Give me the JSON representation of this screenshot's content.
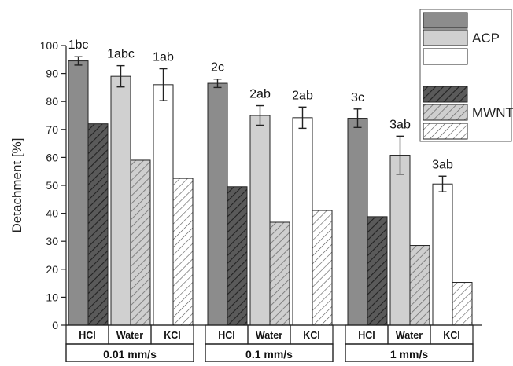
{
  "chart_data": {
    "type": "bar",
    "ylabel": "Detachment [%]",
    "xlabel": "",
    "ylim": [
      0,
      100
    ],
    "yticks": [
      0,
      10,
      20,
      30,
      40,
      50,
      60,
      70,
      80,
      90,
      100
    ],
    "grid": false,
    "groups": [
      "0.01 mm/s",
      "0.1 mm/s",
      "1 mm/s"
    ],
    "categories": [
      "HCl",
      "Water",
      "KCl"
    ],
    "legend": {
      "placement": "top-right",
      "entries": [
        {
          "label": "",
          "fill": "#8c8c8c",
          "pattern": "solid"
        },
        {
          "label": "ACP",
          "fill": "#d0d0d0",
          "pattern": "solid"
        },
        {
          "label": "",
          "fill": "#ffffff",
          "pattern": "solid"
        },
        {
          "label": "",
          "fill": "#5a5a5a",
          "pattern": "hatch"
        },
        {
          "label": "MWNT",
          "fill": "#b8b8b8",
          "pattern": "hatch"
        },
        {
          "label": "",
          "fill": "#ffffff",
          "pattern": "hatch"
        }
      ]
    },
    "series": [
      {
        "material": "ACP",
        "bars": [
          {
            "group": "0.01 mm/s",
            "category": "HCl",
            "value": 94.5,
            "err": 1.5,
            "label": "1bc",
            "fill": "#8c8c8c"
          },
          {
            "group": "0.01 mm/s",
            "category": "Water",
            "value": 89.0,
            "err": 3.8,
            "label": "1abc",
            "fill": "#d0d0d0"
          },
          {
            "group": "0.01 mm/s",
            "category": "KCl",
            "value": 86.0,
            "err": 5.7,
            "label": "1ab",
            "fill": "#ffffff"
          },
          {
            "group": "0.1 mm/s",
            "category": "HCl",
            "value": 86.5,
            "err": 1.5,
            "label": "2c",
            "fill": "#8c8c8c"
          },
          {
            "group": "0.1 mm/s",
            "category": "Water",
            "value": 75.0,
            "err": 3.5,
            "label": "2ab",
            "fill": "#d0d0d0"
          },
          {
            "group": "0.1 mm/s",
            "category": "KCl",
            "value": 74.2,
            "err": 3.8,
            "label": "2ab",
            "fill": "#ffffff"
          },
          {
            "group": "1 mm/s",
            "category": "HCl",
            "value": 74.0,
            "err": 3.3,
            "label": "3c",
            "fill": "#8c8c8c"
          },
          {
            "group": "1 mm/s",
            "category": "Water",
            "value": 60.8,
            "err": 6.8,
            "label": "3ab",
            "fill": "#d0d0d0"
          },
          {
            "group": "1 mm/s",
            "category": "KCl",
            "value": 50.5,
            "err": 2.8,
            "label": "3ab",
            "fill": "#ffffff"
          }
        ]
      },
      {
        "material": "MWNT",
        "bars": [
          {
            "group": "0.01 mm/s",
            "category": "HCl",
            "value": 72.0,
            "fill": "#5a5a5a"
          },
          {
            "group": "0.01 mm/s",
            "category": "Water",
            "value": 59.0,
            "fill": "#b8b8b8"
          },
          {
            "group": "0.01 mm/s",
            "category": "KCl",
            "value": 52.5,
            "fill": "#ffffff"
          },
          {
            "group": "0.1 mm/s",
            "category": "HCl",
            "value": 49.5,
            "fill": "#5a5a5a"
          },
          {
            "group": "0.1 mm/s",
            "category": "Water",
            "value": 36.8,
            "fill": "#b8b8b8"
          },
          {
            "group": "0.1 mm/s",
            "category": "KCl",
            "value": 41.0,
            "fill": "#ffffff"
          },
          {
            "group": "1 mm/s",
            "category": "HCl",
            "value": 38.8,
            "fill": "#5a5a5a"
          },
          {
            "group": "1 mm/s",
            "category": "Water",
            "value": 28.5,
            "fill": "#b8b8b8"
          },
          {
            "group": "1 mm/s",
            "category": "KCl",
            "value": 15.3,
            "fill": "#ffffff"
          }
        ]
      }
    ]
  }
}
